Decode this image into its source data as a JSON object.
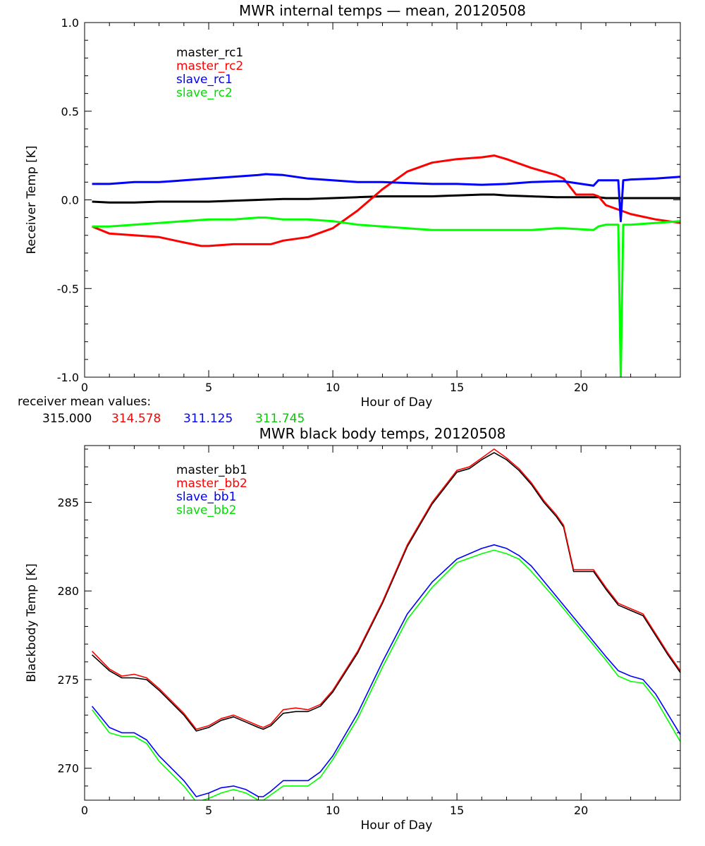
{
  "chart_data": [
    {
      "type": "line",
      "title": "MWR internal temps — mean, 20120508",
      "xlabel": "Hour of Day",
      "ylabel": "Receiver Temp [K]",
      "xlim": [
        0,
        24
      ],
      "ylim": [
        -1.0,
        1.0
      ],
      "x_ticks": [
        0,
        5,
        10,
        15,
        20
      ],
      "y_ticks": [
        -1.0,
        -0.5,
        0.0,
        0.5,
        1.0
      ],
      "y_tick_labels": [
        "-1.0",
        "-0.5",
        "0.0",
        "0.5",
        "1.0"
      ],
      "grid": false,
      "legend_position": "top-left",
      "series": [
        {
          "name": "master_rc1",
          "color": "#000000",
          "x": [
            0.3,
            1,
            2,
            3,
            4,
            5,
            6,
            7,
            8,
            9,
            10,
            11,
            12,
            13,
            14,
            15,
            16,
            16.5,
            17,
            18,
            19,
            19.3,
            20.5,
            20.7,
            21,
            22,
            23,
            24
          ],
          "y": [
            -0.01,
            -0.015,
            -0.015,
            -0.01,
            -0.01,
            -0.01,
            -0.005,
            0.0,
            0.005,
            0.005,
            0.01,
            0.015,
            0.02,
            0.02,
            0.02,
            0.025,
            0.03,
            0.03,
            0.025,
            0.02,
            0.015,
            0.015,
            0.015,
            0.015,
            0.01,
            0.01,
            0.01,
            0.01
          ]
        },
        {
          "name": "master_rc2",
          "color": "#ff0000",
          "x": [
            0.3,
            1,
            2,
            3,
            4,
            4.7,
            5,
            6,
            7,
            7.5,
            8,
            9,
            10,
            11,
            12,
            13,
            14,
            15,
            16,
            16.5,
            17,
            18,
            19,
            19.3,
            19.8,
            20.5,
            20.7,
            21,
            22,
            23,
            24
          ],
          "y": [
            -0.15,
            -0.19,
            -0.2,
            -0.21,
            -0.24,
            -0.26,
            -0.26,
            -0.25,
            -0.25,
            -0.25,
            -0.23,
            -0.21,
            -0.16,
            -0.06,
            0.06,
            0.16,
            0.21,
            0.23,
            0.24,
            0.25,
            0.23,
            0.18,
            0.14,
            0.12,
            0.03,
            0.03,
            0.02,
            -0.03,
            -0.08,
            -0.11,
            -0.13
          ]
        },
        {
          "name": "slave_rc1",
          "color": "#0000ff",
          "x": [
            0.3,
            1,
            2,
            3,
            4,
            5,
            6,
            7,
            7.3,
            8,
            9,
            10,
            11,
            12,
            13,
            14,
            15,
            16,
            17,
            18,
            19,
            19.3,
            20.5,
            20.7,
            21,
            21.5,
            21.6,
            21.7,
            22,
            23,
            24
          ],
          "y": [
            0.09,
            0.09,
            0.1,
            0.1,
            0.11,
            0.12,
            0.13,
            0.14,
            0.145,
            0.14,
            0.12,
            0.11,
            0.1,
            0.1,
            0.095,
            0.09,
            0.09,
            0.085,
            0.09,
            0.1,
            0.105,
            0.105,
            0.08,
            0.11,
            0.11,
            0.11,
            -0.12,
            0.11,
            0.115,
            0.12,
            0.13
          ]
        },
        {
          "name": "slave_rc2",
          "color": "#00ff00",
          "x": [
            0.3,
            1,
            2,
            3,
            4,
            5,
            6,
            7,
            7.3,
            8,
            9,
            10,
            11,
            12,
            13,
            14,
            15,
            16,
            17,
            18,
            19,
            19.3,
            20.5,
            20.7,
            21,
            21.5,
            21.6,
            21.7,
            22,
            23,
            24
          ],
          "y": [
            -0.15,
            -0.15,
            -0.14,
            -0.13,
            -0.12,
            -0.11,
            -0.11,
            -0.1,
            -0.1,
            -0.11,
            -0.11,
            -0.12,
            -0.14,
            -0.15,
            -0.16,
            -0.17,
            -0.17,
            -0.17,
            -0.17,
            -0.17,
            -0.16,
            -0.16,
            -0.17,
            -0.15,
            -0.14,
            -0.14,
            -1.0,
            -0.14,
            -0.14,
            -0.13,
            -0.12
          ]
        }
      ],
      "receiver_mean_values": {
        "label": "receiver mean values:",
        "values": [
          "315.000",
          "314.578",
          "311.125",
          "311.745"
        ]
      }
    },
    {
      "type": "line",
      "title": "MWR black body temps, 20120508",
      "xlabel": "Hour of Day",
      "ylabel": "Blackbody Temp [K]",
      "xlim": [
        0,
        24
      ],
      "ylim": [
        268.2,
        288.2
      ],
      "x_ticks": [
        0,
        5,
        10,
        15,
        20
      ],
      "y_ticks": [
        270,
        275,
        280,
        285
      ],
      "y_tick_labels": [
        "270",
        "275",
        "280",
        "285"
      ],
      "grid": false,
      "legend_position": "top-left",
      "series": [
        {
          "name": "master_bb1",
          "color": "#000000",
          "x": [
            0.3,
            1,
            1.5,
            2,
            2.5,
            3,
            4,
            4.5,
            5,
            5.5,
            6,
            6.5,
            7,
            7.2,
            7.5,
            8,
            8.5,
            9,
            9.5,
            10,
            11,
            12,
            13,
            14,
            15,
            15.5,
            16,
            16.5,
            17,
            17.5,
            18,
            18.5,
            19,
            19.3,
            19.7,
            20.5,
            21,
            21.5,
            22,
            22.5,
            23,
            23.5,
            24
          ],
          "y": [
            276.4,
            275.5,
            275.1,
            275.1,
            275.0,
            274.4,
            273.0,
            272.1,
            272.3,
            272.7,
            272.9,
            272.6,
            272.3,
            272.2,
            272.4,
            273.1,
            273.2,
            273.2,
            273.5,
            274.3,
            276.5,
            279.3,
            282.5,
            284.9,
            286.7,
            286.9,
            287.4,
            287.8,
            287.4,
            286.8,
            286.0,
            285.0,
            284.2,
            283.6,
            281.1,
            281.1,
            280.1,
            279.2,
            278.9,
            278.6,
            277.5,
            276.4,
            275.4
          ]
        },
        {
          "name": "master_bb2",
          "color": "#ff0000",
          "x": [
            0.3,
            1,
            1.5,
            2,
            2.5,
            3,
            4,
            4.5,
            5,
            5.5,
            6,
            6.5,
            7,
            7.2,
            7.5,
            8,
            8.5,
            9,
            9.5,
            10,
            11,
            12,
            13,
            14,
            15,
            15.5,
            16,
            16.5,
            17,
            17.5,
            18,
            18.5,
            19,
            19.3,
            19.7,
            20.5,
            21,
            21.5,
            22,
            22.5,
            23,
            23.5,
            24
          ],
          "y": [
            276.6,
            275.6,
            275.2,
            275.3,
            275.1,
            274.5,
            273.1,
            272.2,
            272.4,
            272.8,
            273.0,
            272.7,
            272.4,
            272.3,
            272.5,
            273.3,
            273.4,
            273.3,
            273.6,
            274.4,
            276.6,
            279.4,
            282.6,
            285.0,
            286.8,
            287.0,
            287.5,
            288.0,
            287.5,
            286.9,
            286.1,
            285.1,
            284.3,
            283.7,
            281.2,
            281.2,
            280.2,
            279.3,
            279.0,
            278.7,
            277.6,
            276.5,
            275.5
          ]
        },
        {
          "name": "slave_bb1",
          "color": "#0000ff",
          "x": [
            0.3,
            1,
            1.5,
            2,
            2.5,
            3,
            4,
            4.5,
            5,
            5.5,
            6,
            6.5,
            7,
            7.2,
            7.5,
            8,
            8.5,
            9,
            9.5,
            10,
            11,
            12,
            13,
            14,
            15,
            16,
            16.5,
            17,
            17.5,
            18,
            19,
            20,
            21,
            21.5,
            22,
            22.5,
            23,
            24
          ],
          "y": [
            273.5,
            272.3,
            272.0,
            272.0,
            271.6,
            270.7,
            269.3,
            268.4,
            268.6,
            268.9,
            269.0,
            268.8,
            268.4,
            268.4,
            268.7,
            269.3,
            269.3,
            269.3,
            269.8,
            270.7,
            273.1,
            276.0,
            278.7,
            280.5,
            281.8,
            282.4,
            282.6,
            282.4,
            282.0,
            281.4,
            279.7,
            278.0,
            276.3,
            275.5,
            275.2,
            275.0,
            274.2,
            271.9
          ]
        },
        {
          "name": "slave_bb2",
          "color": "#00ff00",
          "x": [
            0.3,
            1,
            1.5,
            2,
            2.5,
            3,
            4,
            4.5,
            5,
            5.5,
            6,
            6.5,
            7,
            7.2,
            7.5,
            8,
            8.5,
            9,
            9.5,
            10,
            11,
            12,
            13,
            14,
            15,
            16,
            16.5,
            17,
            17.5,
            18,
            19,
            20,
            21,
            21.5,
            22,
            22.5,
            23,
            24
          ],
          "y": [
            273.3,
            272.0,
            271.8,
            271.8,
            271.4,
            270.4,
            269.0,
            268.1,
            268.3,
            268.6,
            268.8,
            268.6,
            268.2,
            268.2,
            268.5,
            269.0,
            269.0,
            269.0,
            269.5,
            270.5,
            272.8,
            275.7,
            278.4,
            280.2,
            281.6,
            282.1,
            282.3,
            282.1,
            281.8,
            281.1,
            279.5,
            277.8,
            276.1,
            275.2,
            274.9,
            274.8,
            273.9,
            271.5
          ]
        }
      ]
    }
  ]
}
